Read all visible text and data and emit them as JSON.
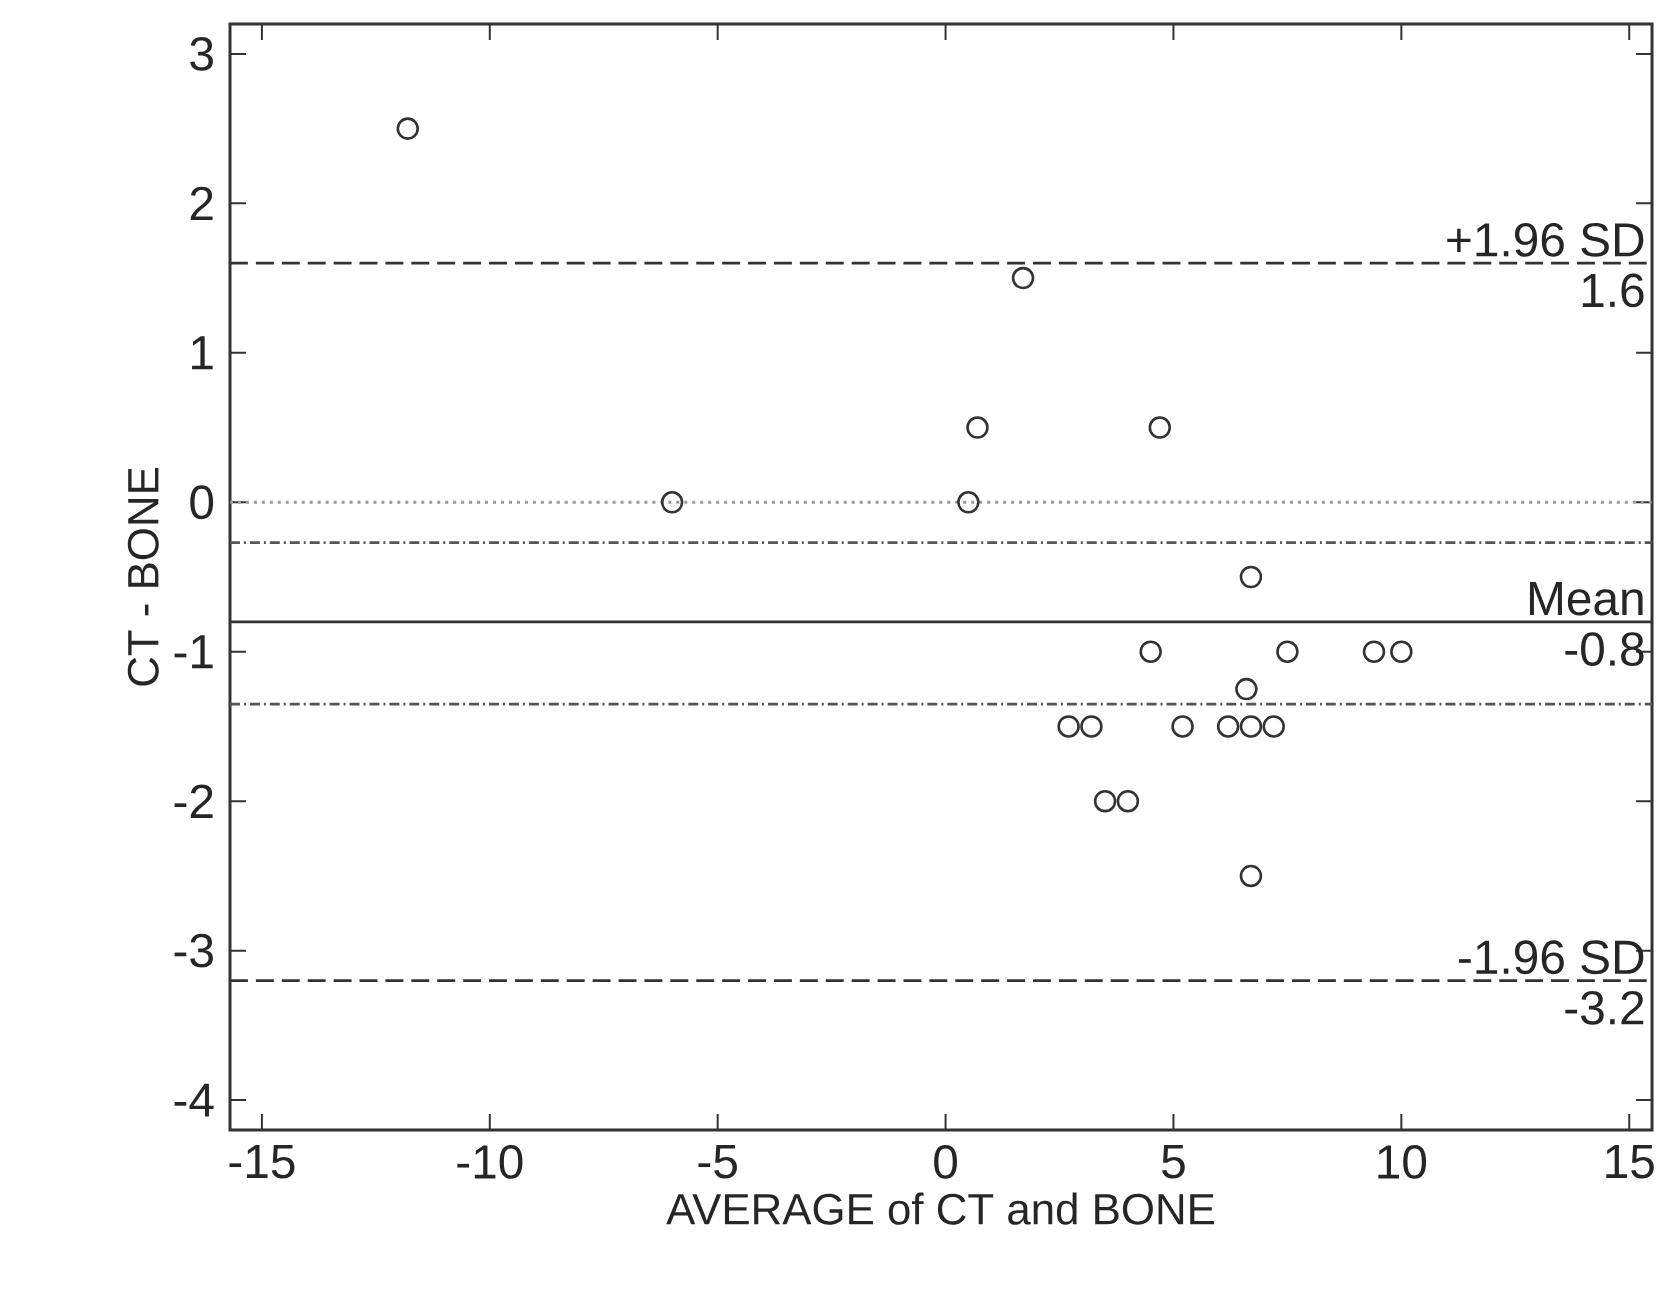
{
  "chart_data": {
    "type": "scatter",
    "xlabel": "AVERAGE of CT and BONE",
    "ylabel": "CT - BONE",
    "xlim": [
      -15.7,
      15.5
    ],
    "ylim": [
      -4.2,
      3.2
    ],
    "xticks": [
      -15,
      -10,
      -5,
      0,
      5,
      10,
      15
    ],
    "yticks": [
      -4,
      -3,
      -2,
      -1,
      0,
      1,
      2,
      3
    ],
    "marker": "circle",
    "series": [
      {
        "color": "#333333",
        "x": [
          -11.8,
          -6,
          0.5,
          0.7,
          1.7,
          4.7,
          6.7,
          4.5,
          7.5,
          9.4,
          10,
          6.6,
          2.7,
          3.2,
          5.2,
          6.2,
          6.7,
          7.2,
          3.5,
          4.0,
          6.7
        ],
        "values": [
          2.5,
          0,
          0,
          0.5,
          1.5,
          0.5,
          -0.5,
          -1,
          -1,
          -1,
          -1,
          -1.25,
          -1.5,
          -1.5,
          -1.5,
          -1.5,
          -1.5,
          -1.5,
          -2,
          -2,
          -2.5
        ]
      }
    ],
    "ref_lines": [
      {
        "axis": "y",
        "value": 1.6,
        "label": "+1.96 SD",
        "color": "#333333",
        "line_style": "dashed"
      },
      {
        "axis": "y",
        "value": -0.8,
        "label": "Mean",
        "color": "#333333",
        "line_style": "solid"
      },
      {
        "axis": "y",
        "value": -3.2,
        "label": "-1.96 SD",
        "color": "#333333",
        "line_style": "dashed"
      },
      {
        "axis": "y",
        "value": 0,
        "color": "#999999",
        "line_style": "dotted"
      },
      {
        "axis": "y",
        "value": -0.27,
        "color": "#555555",
        "line_style": "dashdotted"
      },
      {
        "axis": "y",
        "value": -1.35,
        "color": "#555555",
        "line_style": "dashdotted"
      }
    ],
    "annotations": [
      {
        "text": "1.6",
        "y": 1.6
      },
      {
        "text": "-0.8",
        "y": -0.8
      },
      {
        "text": "-3.2",
        "y": -3.2
      }
    ]
  }
}
